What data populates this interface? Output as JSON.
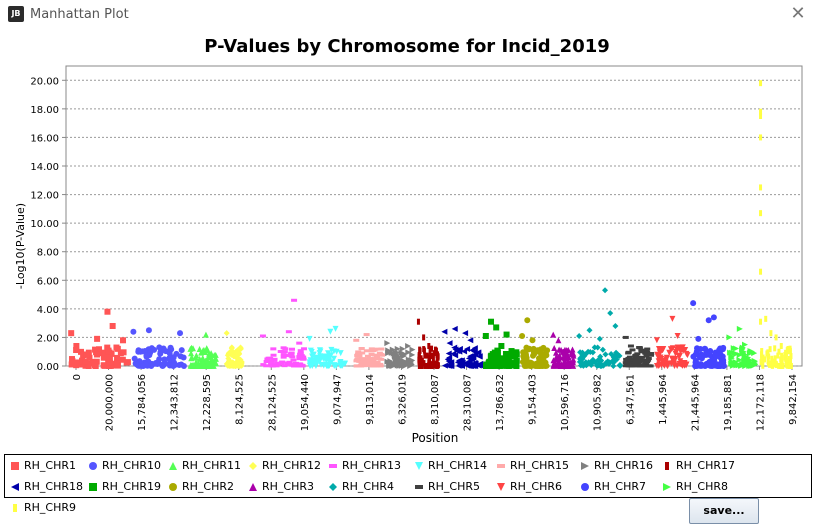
{
  "window": {
    "title": "Manhattan Plot",
    "logo_text": "JB",
    "close_glyph": "✕"
  },
  "save_label": "save...",
  "chart_data": {
    "type": "scatter",
    "title": "P-Values by Chromosome for Incid_2019",
    "xlabel": "Position",
    "ylabel": "-Log10(P-Value)",
    "ylim": [
      0,
      21
    ],
    "yticks": [
      "0.00",
      "2.00",
      "4.00",
      "6.00",
      "8.00",
      "10.00",
      "12.00",
      "14.00",
      "16.00",
      "18.00",
      "20.00"
    ],
    "xticks": [
      "0",
      "20,000,000",
      "15,784,056",
      "12,343,812",
      "12,228,595",
      "8,124,525",
      "28,124,525",
      "19,054,440",
      "9,074,947",
      "9,813,014",
      "6,326,019",
      "8,310,087",
      "28,310,087",
      "13,786,632",
      "9,154,403",
      "10,596,716",
      "10,905,982",
      "6,347,561",
      "1,445,964",
      "21,445,964",
      "19,185,881",
      "12,172,118",
      "9,842,154"
    ],
    "grid": true,
    "legend_position": "bottom",
    "series": [
      {
        "name": "RH_CHR1",
        "color": "#ff5555",
        "marker": "square",
        "points": [
          [
            1,
            2.3
          ],
          [
            2,
            1.4
          ],
          [
            4,
            0.8
          ],
          [
            6,
            1.9
          ],
          [
            8,
            3.8
          ],
          [
            9,
            2.8
          ],
          [
            10,
            1.2
          ],
          [
            11,
            1.8
          ]
        ]
      },
      {
        "name": "RH_CHR10",
        "color": "#5555ff",
        "marker": "circle",
        "points": [
          [
            13,
            2.4
          ],
          [
            14,
            1.1
          ],
          [
            16,
            2.5
          ],
          [
            18,
            1.3
          ],
          [
            20,
            0.9
          ],
          [
            22,
            2.3
          ]
        ]
      },
      {
        "name": "RH_CHR11",
        "color": "#55ff55",
        "marker": "triangle-up",
        "points": [
          [
            24,
            1.2
          ],
          [
            25,
            0.6
          ],
          [
            27,
            2.2
          ],
          [
            28,
            0.9
          ]
        ]
      },
      {
        "name": "RH_CHR12",
        "color": "#ffff55",
        "marker": "diamond",
        "points": [
          [
            31,
            2.3
          ],
          [
            32,
            1.3
          ],
          [
            33,
            0.7
          ]
        ]
      },
      {
        "name": "RH_CHR13",
        "color": "#ff55ff",
        "marker": "rect",
        "points": [
          [
            38,
            2.1
          ],
          [
            40,
            1.2
          ],
          [
            42,
            0.8
          ],
          [
            43,
            2.4
          ],
          [
            44,
            4.6
          ],
          [
            45,
            1.6
          ]
        ]
      },
      {
        "name": "RH_CHR14",
        "color": "#55ffff",
        "marker": "triangle-down",
        "points": [
          [
            47,
            1.9
          ],
          [
            49,
            1.1
          ],
          [
            51,
            2.4
          ],
          [
            52,
            2.6
          ],
          [
            53,
            0.9
          ]
        ]
      },
      {
        "name": "RH_CHR15",
        "color": "#ffaaaa",
        "marker": "rect",
        "points": [
          [
            56,
            1.8
          ],
          [
            58,
            2.2
          ],
          [
            59,
            1.2
          ],
          [
            60,
            0.7
          ]
        ]
      },
      {
        "name": "RH_CHR16",
        "color": "#808080",
        "marker": "triangle-right",
        "points": [
          [
            62,
            1.6
          ],
          [
            64,
            1.2
          ],
          [
            65,
            0.8
          ],
          [
            66,
            1.4
          ]
        ]
      },
      {
        "name": "RH_CHR17",
        "color": "#aa0000",
        "marker": "rect-v",
        "points": [
          [
            68,
            3.1
          ],
          [
            69,
            2.0
          ],
          [
            70,
            1.4
          ],
          [
            71,
            0.9
          ]
        ]
      },
      {
        "name": "RH_CHR18",
        "color": "#0000aa",
        "marker": "triangle-left",
        "points": [
          [
            73,
            2.4
          ],
          [
            74,
            1.6
          ],
          [
            75,
            2.6
          ],
          [
            76,
            1.2
          ],
          [
            77,
            2.3
          ],
          [
            78,
            1.8
          ],
          [
            79,
            0.8
          ]
        ]
      },
      {
        "name": "RH_CHR19",
        "color": "#00aa00",
        "marker": "square",
        "points": [
          [
            81,
            2.1
          ],
          [
            82,
            3.1
          ],
          [
            83,
            2.7
          ],
          [
            84,
            1.4
          ],
          [
            85,
            2.2
          ],
          [
            86,
            0.9
          ]
        ]
      },
      {
        "name": "RH_CHR2",
        "color": "#aaaa00",
        "marker": "circle",
        "points": [
          [
            88,
            2.1
          ],
          [
            89,
            3.2
          ],
          [
            90,
            1.8
          ],
          [
            91,
            1.1
          ],
          [
            92,
            0.7
          ]
        ]
      },
      {
        "name": "RH_CHR3",
        "color": "#aa00aa",
        "marker": "triangle-up",
        "points": [
          [
            94,
            2.2
          ],
          [
            95,
            1.8
          ],
          [
            96,
            1.0
          ],
          [
            97,
            0.6
          ]
        ]
      },
      {
        "name": "RH_CHR4",
        "color": "#00aaaa",
        "marker": "diamond",
        "points": [
          [
            99,
            2.1
          ],
          [
            101,
            2.5
          ],
          [
            102,
            1.3
          ],
          [
            103,
            1.9
          ],
          [
            104,
            5.3
          ],
          [
            105,
            3.7
          ],
          [
            106,
            2.8
          ]
        ]
      },
      {
        "name": "RH_CHR5",
        "color": "#404040",
        "marker": "rect",
        "points": [
          [
            108,
            2.0
          ],
          [
            109,
            1.4
          ],
          [
            111,
            1.1
          ],
          [
            112,
            0.7
          ]
        ]
      },
      {
        "name": "RH_CHR6",
        "color": "#ff4444",
        "marker": "triangle-down",
        "points": [
          [
            114,
            1.8
          ],
          [
            115,
            1.1
          ],
          [
            117,
            3.3
          ],
          [
            118,
            2.1
          ],
          [
            119,
            1.3
          ]
        ]
      },
      {
        "name": "RH_CHR7",
        "color": "#4444ff",
        "marker": "circle",
        "points": [
          [
            121,
            4.4
          ],
          [
            122,
            1.9
          ],
          [
            124,
            3.2
          ],
          [
            125,
            3.4
          ],
          [
            126,
            1.1
          ]
        ]
      },
      {
        "name": "RH_CHR8",
        "color": "#44ff44",
        "marker": "triangle-right",
        "points": [
          [
            128,
            2.0
          ],
          [
            130,
            2.6
          ],
          [
            131,
            1.5
          ],
          [
            132,
            0.9
          ]
        ]
      },
      {
        "name": "RH_CHR9",
        "color": "#ffff44",
        "marker": "rect-v",
        "points": [
          [
            134,
            19.8
          ],
          [
            134,
            17.8
          ],
          [
            134,
            17.5
          ],
          [
            134,
            16.0
          ],
          [
            134,
            12.5
          ],
          [
            134,
            10.7
          ],
          [
            134,
            6.6
          ],
          [
            134,
            3.1
          ],
          [
            135,
            3.3
          ],
          [
            136,
            2.3
          ],
          [
            137,
            2.0
          ],
          [
            138,
            1.4
          ],
          [
            139,
            0.8
          ]
        ]
      }
    ]
  }
}
